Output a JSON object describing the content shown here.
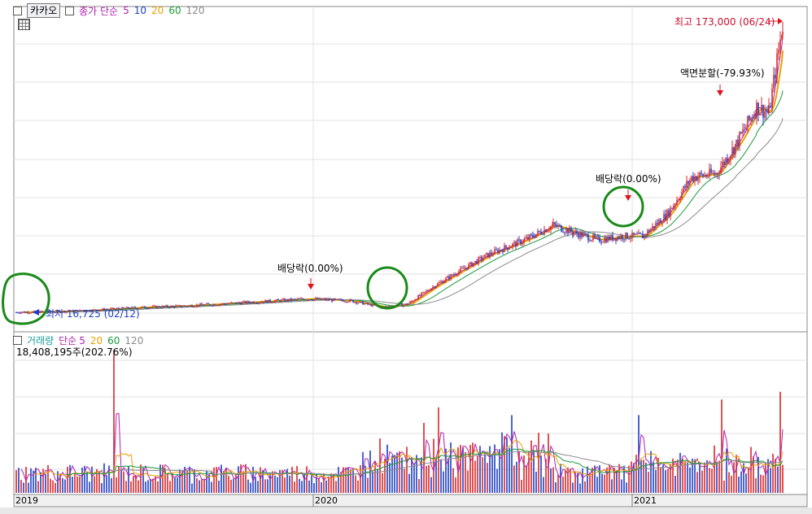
{
  "price_panel": {
    "name": "카카오",
    "indicator_label": "종가 단순",
    "ma_periods": [
      "5",
      "10",
      "20",
      "60",
      "120"
    ]
  },
  "volume_panel": {
    "name": "거래량",
    "indicator_label": "단순",
    "ma_periods": [
      "5",
      "20",
      "60",
      "120"
    ],
    "max_volume_label": "18,408,195주(202.76%)"
  },
  "annotations": {
    "high": "최고 173,000 (06/24)",
    "low": "최저 16,725 (02/12)",
    "dividend_2019": "배당락(0.00%)",
    "dividend_2020": "배당락(0.00%)",
    "split": "액면분할(-79.93%)"
  },
  "colors": {
    "up": "#d9262a",
    "down": "#1e3ec4",
    "ma5": "#b020b0",
    "ma20": "#e6a300",
    "ma60": "#1a9a3a",
    "ma120": "#8a8a8a",
    "circle": "#1a8a1a"
  },
  "chart_data": [
    {
      "type": "line",
      "series": [
        {
          "name": "종가",
          "values": [
            16725,
            17000,
            17500,
            18500,
            19500,
            20000,
            21000,
            22000,
            23000,
            24000,
            23000,
            19500,
            21000,
            30000,
            38000,
            48000,
            56000,
            64000,
            60000,
            56000,
            58000,
            58000,
            70000,
            90000,
            92000,
            108000,
            128000,
            125000,
            173000
          ]
        }
      ],
      "x": [
        "2019-02",
        "2019-03",
        "2019-04",
        "2019-05",
        "2019-06",
        "2019-07",
        "2019-08",
        "2019-09",
        "2019-10",
        "2019-11",
        "2020-01",
        "2020-03",
        "2020-04",
        "2020-05",
        "2020-06",
        "2020-07",
        "2020-08",
        "2020-09",
        "2020-10",
        "2020-11",
        "2020-12",
        "2021-01",
        "2021-02",
        "2021-03",
        "2021-04",
        "2021-05",
        "2021-06-01",
        "2021-06-10",
        "2021-06-24"
      ],
      "xticks": [
        "2019",
        "2020",
        "2021"
      ]
    },
    {
      "type": "bar",
      "peak_volume": 18408195
    }
  ]
}
